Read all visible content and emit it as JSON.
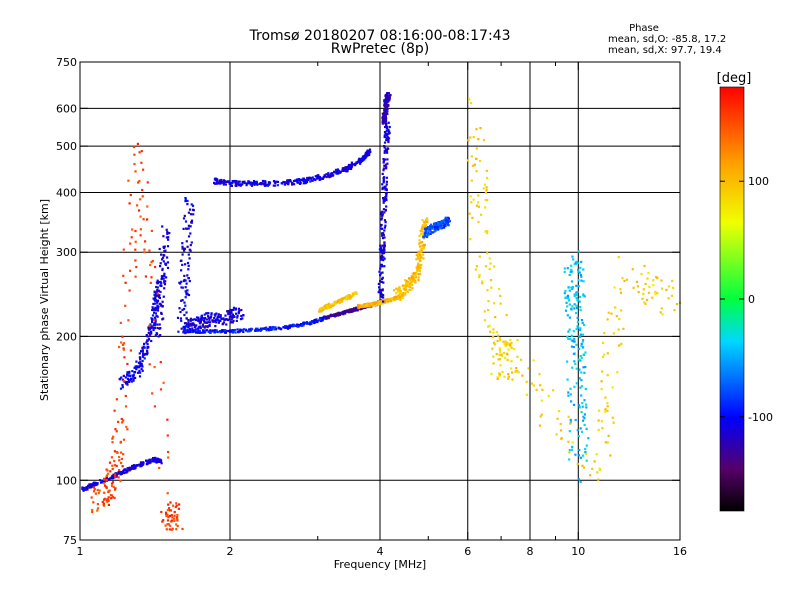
{
  "chart_data": {
    "type": "scatter",
    "title": "Tromsø 20180207 08:16:00-08:17:43",
    "subtitle": "RwPretec (8p)",
    "xlabel": "Frequency [MHz]",
    "ylabel": "Stationary phase Virtual Height [km]",
    "x_scale": "log",
    "y_scale": "log",
    "xlim": [
      1,
      16
    ],
    "ylim": [
      75,
      750
    ],
    "x_ticks": [
      1,
      2,
      4,
      6,
      8,
      10,
      16
    ],
    "x_tick_labels": [
      "1",
      "2",
      "4",
      "6",
      "8",
      "10",
      "16"
    ],
    "x_minor_ticks": [
      3,
      5,
      7,
      9
    ],
    "y_ticks": [
      75,
      100,
      200,
      300,
      400,
      500,
      600,
      750
    ],
    "y_tick_labels": [
      "75",
      "100",
      "200",
      "300",
      "400",
      "500",
      "600",
      "750"
    ],
    "grid_x": [
      2,
      4,
      6,
      8,
      10
    ],
    "grid_y": [
      100,
      200,
      300,
      400,
      500,
      600
    ],
    "phase_info": {
      "title": "Phase",
      "line_o": "mean, sd,O: -85.8, 17.2",
      "line_x": "mean, sd,X:  97.7, 19.4"
    },
    "colorbar": {
      "label": "[deg]",
      "range": [
        -180,
        180
      ],
      "ticks": [
        100,
        0,
        -100
      ],
      "tick_labels": [
        "100",
        "0",
        "-100"
      ]
    },
    "traces": [
      {
        "x": [
          1.0,
          1.1,
          1.2,
          1.3,
          1.4,
          1.45
        ],
        "y": [
          96,
          100,
          104,
          108,
          111,
          110
        ],
        "phase": -110,
        "spread": 4
      },
      {
        "x": [
          1.2,
          1.3,
          1.35,
          1.4,
          1.43
        ],
        "y": [
          160,
          170,
          190,
          220,
          260
        ],
        "phase": -105,
        "spread": 12
      },
      {
        "x": [
          1.42,
          1.45,
          1.48
        ],
        "y": [
          200,
          260,
          330
        ],
        "phase": -110,
        "spread": 18
      },
      {
        "x": [
          1.6,
          1.62,
          1.65
        ],
        "y": [
          210,
          290,
          380
        ],
        "phase": -108,
        "spread": 20
      },
      {
        "x": [
          1.6,
          1.7,
          1.8,
          1.95,
          2.1
        ],
        "y": [
          210,
          215,
          218,
          220,
          225
        ],
        "phase": -110,
        "spread": 14
      },
      {
        "x": [
          1.6,
          1.8,
          2.0,
          2.3,
          2.6,
          2.9,
          3.1
        ],
        "y": [
          206,
          206,
          206,
          208,
          210,
          215,
          220
        ],
        "phase": -95,
        "spread": 3
      },
      {
        "x": [
          3.1,
          3.3,
          3.5,
          3.7,
          3.9,
          4.0
        ],
        "y": [
          220,
          224,
          228,
          232,
          235,
          238
        ],
        "phase": -130,
        "spread": 3
      },
      {
        "x": [
          3.6,
          3.8,
          4.0,
          4.2,
          4.4
        ],
        "y": [
          232,
          234,
          237,
          240,
          245
        ],
        "phase": 105,
        "spread": 3
      },
      {
        "x": [
          4.0,
          4.02,
          4.05,
          4.08,
          4.12
        ],
        "y": [
          240,
          300,
          380,
          470,
          560
        ],
        "phase": -110,
        "spread": 10
      },
      {
        "x": [
          4.05,
          4.08,
          4.1,
          4.15
        ],
        "y": [
          560,
          590,
          620,
          645
        ],
        "phase": -120,
        "spread": 8
      },
      {
        "x": [
          4.3,
          4.5,
          4.7,
          4.8,
          4.9
        ],
        "y": [
          245,
          255,
          270,
          300,
          360
        ],
        "phase": 100,
        "spread": 12
      },
      {
        "x": [
          4.9,
          5.1,
          5.3,
          5.45
        ],
        "y": [
          330,
          340,
          345,
          350
        ],
        "phase": -80,
        "spread": 8
      },
      {
        "x": [
          1.85,
          2.0,
          2.2,
          2.5,
          2.8,
          3.1,
          3.4,
          3.65,
          3.8
        ],
        "y": [
          425,
          420,
          420,
          420,
          425,
          435,
          450,
          470,
          490
        ],
        "phase": -108,
        "spread": 5
      },
      {
        "x": [
          3.0,
          3.3,
          3.6
        ],
        "y": [
          228,
          238,
          248
        ],
        "phase": 98,
        "spread": 4
      },
      {
        "x": [
          1.08,
          1.15,
          1.2,
          1.3,
          1.5,
          1.55
        ],
        "y": [
          92,
          98,
          130,
          540,
          85,
          85
        ],
        "phase": 155,
        "spread": 30
      },
      {
        "x": [
          9.7,
          9.8,
          9.85,
          9.9,
          10.0
        ],
        "y": [
          280,
          250,
          200,
          160,
          105
        ],
        "phase": -40,
        "spread": 40
      },
      {
        "x": [
          6.2,
          6.3,
          7.0,
          7.3,
          11.0,
          12.0,
          15.5
        ],
        "y": [
          620,
          300,
          180,
          180,
          105,
          270,
          240
        ],
        "phase": 90,
        "spread": 40
      }
    ]
  }
}
